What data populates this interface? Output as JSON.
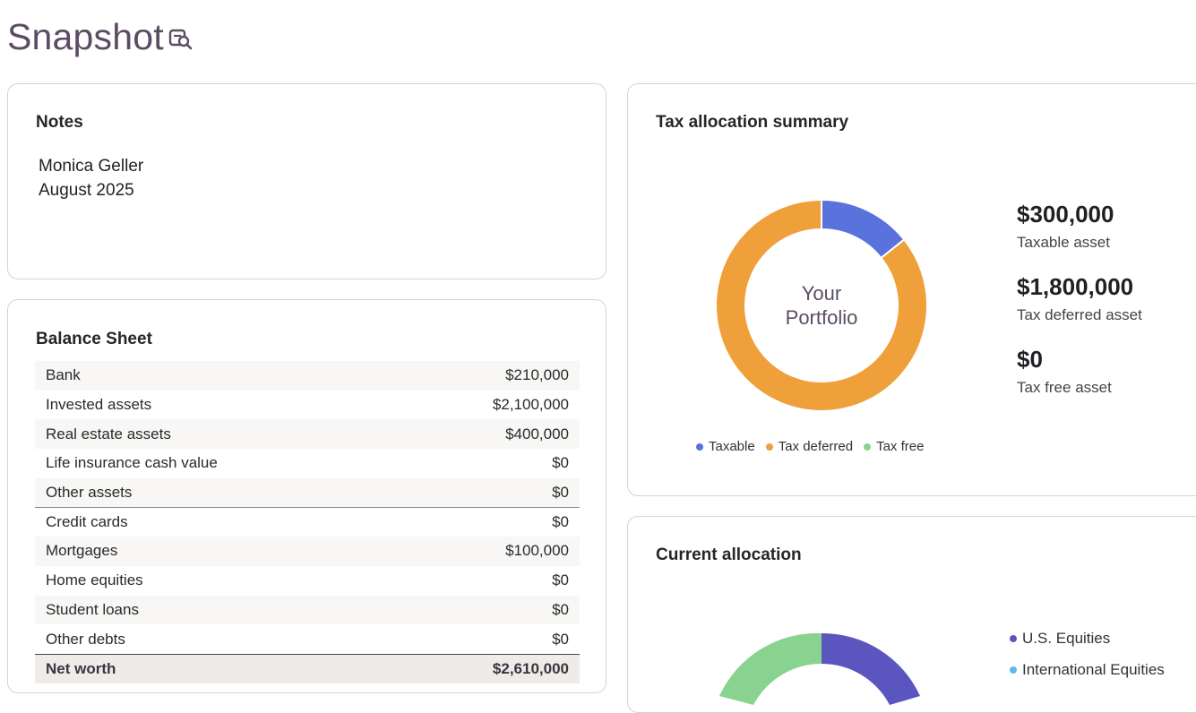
{
  "header": {
    "title": "Snapshot"
  },
  "notes": {
    "title": "Notes",
    "lines": [
      "Monica Geller",
      "August 2025"
    ]
  },
  "balance_sheet": {
    "title": "Balance Sheet",
    "rows": [
      {
        "label": "Bank",
        "value": "$210,000"
      },
      {
        "label": "Invested assets",
        "value": "$2,100,000"
      },
      {
        "label": "Real estate assets",
        "value": "$400,000"
      },
      {
        "label": "Life insurance cash value",
        "value": "$0"
      },
      {
        "label": "Other assets",
        "value": "$0"
      },
      {
        "label": "Credit cards",
        "value": "$0"
      },
      {
        "label": "Mortgages",
        "value": "$100,000"
      },
      {
        "label": "Home equities",
        "value": "$0"
      },
      {
        "label": "Student loans",
        "value": "$0"
      },
      {
        "label": "Other debts",
        "value": "$0"
      }
    ],
    "total": {
      "label": "Net worth",
      "value": "$2,610,000"
    }
  },
  "tax_allocation": {
    "title": "Tax allocation summary",
    "center_line1": "Your",
    "center_line2": "Portfolio",
    "stats": [
      {
        "value": "$300,000",
        "label": "Taxable asset"
      },
      {
        "value": "$1,800,000",
        "label": "Tax deferred asset"
      },
      {
        "value": "$0",
        "label": "Tax free asset"
      }
    ],
    "legend": [
      {
        "label": "Taxable",
        "color": "#5a72dc"
      },
      {
        "label": "Tax deferred",
        "color": "#efa03a"
      },
      {
        "label": "Tax free",
        "color": "#88d38f"
      }
    ]
  },
  "current_allocation": {
    "title": "Current allocation",
    "legend": [
      {
        "label": "U.S. Equities",
        "color": "#5b56bf"
      },
      {
        "label": "International Equities",
        "color": "#5bbcea"
      }
    ]
  },
  "chart_data": [
    {
      "type": "pie",
      "title": "Tax allocation summary",
      "categories": [
        "Taxable",
        "Tax deferred",
        "Tax free"
      ],
      "values": [
        300000,
        1800000,
        0
      ],
      "colors": [
        "#5a72dc",
        "#efa03a",
        "#88d38f"
      ]
    }
  ]
}
